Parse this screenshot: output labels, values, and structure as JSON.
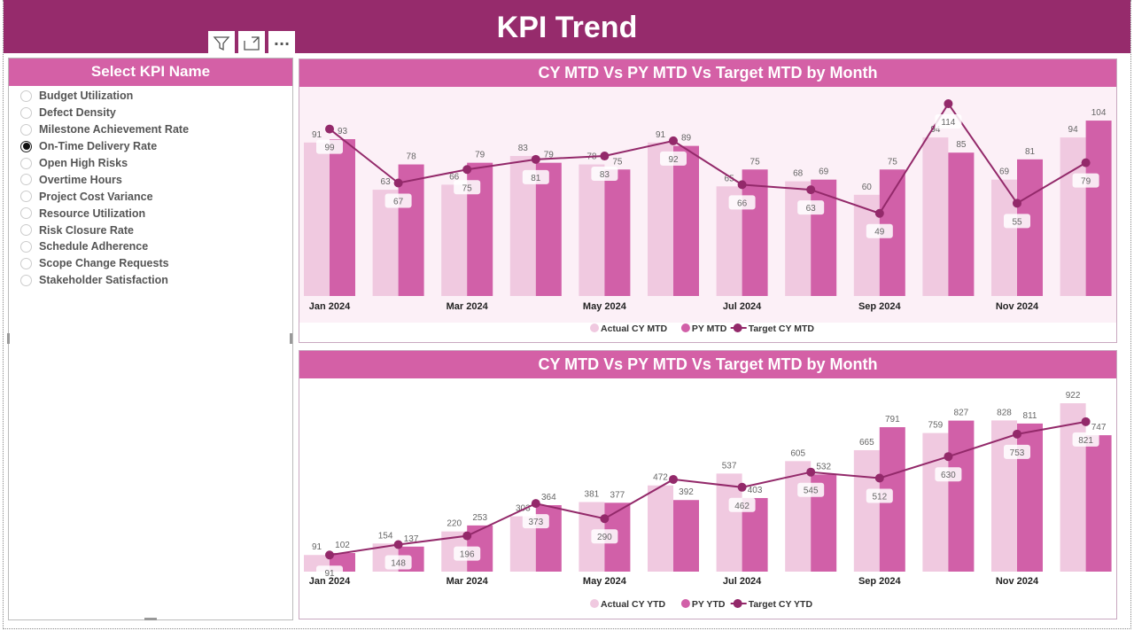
{
  "header": {
    "title": "KPI Trend"
  },
  "toolbar": {
    "icons": [
      "filter-icon",
      "focus-mode-icon",
      "more-options-icon"
    ],
    "more_label": "···"
  },
  "slicer": {
    "title": "Select KPI Name",
    "selected": "On-Time Delivery Rate",
    "items": [
      "Budget Utilization",
      "Defect Density",
      "Milestone Achievement Rate",
      "On-Time Delivery Rate",
      "Open High Risks",
      "Overtime Hours",
      "Project Cost Variance",
      "Resource Utilization",
      "Risk Closure Rate",
      "Schedule Adherence",
      "Scope Change Requests",
      "Stakeholder Satisfaction"
    ]
  },
  "colors": {
    "header": "#962B6C",
    "accent": "#D460A6",
    "actual": "#F0C9E0",
    "py": "#D160A8",
    "target": "#93296A",
    "plot_bg_top": "#FCF0F7"
  },
  "chart_data": [
    {
      "type": "bar+line",
      "title": "CY MTD Vs PY MTD Vs Target MTD by Month",
      "x_tick_labels": [
        "Jan 2024",
        "Mar 2024",
        "May 2024",
        "Jul 2024",
        "Sep 2024",
        "Nov 2024"
      ],
      "series": [
        {
          "name": "Actual CY MTD",
          "type": "bar",
          "values": [
            91,
            63,
            66,
            83,
            78,
            91,
            65,
            68,
            60,
            94,
            69,
            94
          ]
        },
        {
          "name": "PY MTD",
          "type": "bar",
          "values": [
            93,
            78,
            79,
            79,
            75,
            89,
            75,
            69,
            75,
            85,
            81,
            104
          ]
        },
        {
          "name": "Target CY MTD",
          "type": "line",
          "values": [
            99,
            67,
            75,
            81,
            83,
            92,
            66,
            63,
            49,
            114,
            55,
            79
          ]
        }
      ],
      "ylim": [
        0,
        124
      ],
      "legend": "bottom-center",
      "grid": false
    },
    {
      "type": "bar+line",
      "title": "CY MTD Vs PY MTD Vs Target MTD by Month",
      "x_tick_labels": [
        "Jan 2024",
        "Mar 2024",
        "May 2024",
        "Jul 2024",
        "Sep 2024",
        "Nov 2024"
      ],
      "series": [
        {
          "name": "Actual CY YTD",
          "type": "bar",
          "values": [
            91,
            154,
            220,
            303,
            381,
            472,
            537,
            605,
            665,
            759,
            828,
            922
          ]
        },
        {
          "name": "PY YTD",
          "type": "bar",
          "values": [
            102,
            137,
            253,
            364,
            377,
            392,
            403,
            532,
            791,
            827,
            811,
            747
          ]
        },
        {
          "name": "Target CY YTD",
          "type": "line",
          "values": [
            91,
            148,
            196,
            373,
            290,
            505,
            462,
            545,
            512,
            630,
            753,
            821
          ],
          "labels_hidden": [
            5
          ]
        }
      ],
      "ylim": [
        0,
        1058
      ],
      "legend": "bottom-center",
      "grid": false
    }
  ]
}
